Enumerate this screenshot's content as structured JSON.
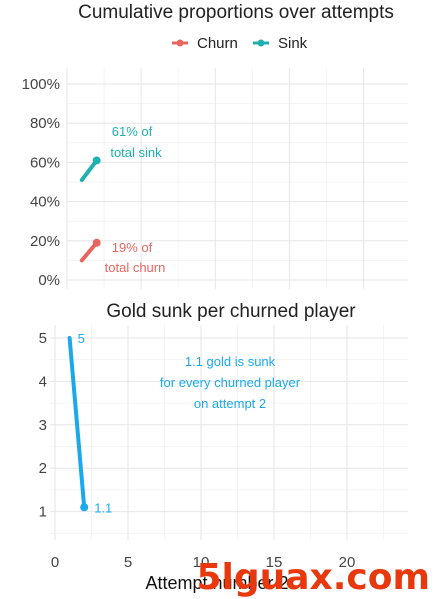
{
  "chart_data": [
    {
      "type": "line",
      "title": "Cumulative proportions over attempts",
      "xlabel": "",
      "ylabel": "",
      "ylim": [
        0,
        1
      ],
      "yticks": [
        "0%",
        "20%",
        "40%",
        "60%",
        "80%",
        "100%"
      ],
      "xlim": [
        0,
        23
      ],
      "legend_position": "top",
      "series": [
        {
          "name": "Churn",
          "color": "#e8665f",
          "x": [
            1,
            2
          ],
          "y": [
            0.1,
            0.19
          ]
        },
        {
          "name": "Sink",
          "color": "#1fb0b0",
          "x": [
            1,
            2
          ],
          "y": [
            0.51,
            0.61
          ]
        }
      ],
      "annotations": [
        {
          "text": [
            "61% of",
            "total sink"
          ],
          "series": "Sink",
          "color": "#1fb0b0"
        },
        {
          "text": [
            "19% of",
            "total churn"
          ],
          "series": "Churn",
          "color": "#e8665f"
        }
      ]
    },
    {
      "type": "line",
      "title": "Gold sunk per churned player",
      "xlabel": "Attempt number 2",
      "ylabel": "",
      "xlim": [
        0,
        24
      ],
      "ylim": [
        0.4,
        5.1
      ],
      "xticks": [
        "0",
        "5",
        "10",
        "15",
        "20"
      ],
      "yticks": [
        "1",
        "2",
        "3",
        "4",
        "5"
      ],
      "series": [
        {
          "name": "",
          "color": "#1ba9ec",
          "x": [
            1,
            2
          ],
          "y": [
            5,
            1.1
          ]
        }
      ],
      "point_labels": [
        "5",
        "1.1"
      ],
      "annotation": {
        "text": [
          "1.1 gold is sunk",
          "for every churned player",
          "on attempt 2"
        ],
        "color": "#1ba9ec"
      }
    }
  ],
  "watermark": {
    "text": "5lguax.com",
    "color": "#e8380d"
  }
}
